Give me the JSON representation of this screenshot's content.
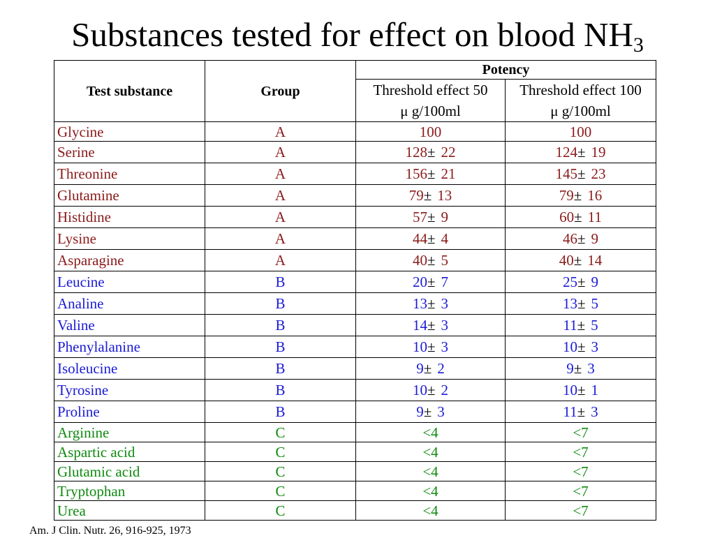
{
  "title": {
    "text": "Substances tested for effect on blood NH",
    "subscript": "3"
  },
  "table": {
    "headers": {
      "test_substance": "Test substance",
      "group": "Group",
      "potency": "Potency",
      "threshold50_line1": "Threshold effect 50",
      "threshold50_line2": "μ g/100ml",
      "threshold100_line1": "Threshold effect 100",
      "threshold100_line2": "μ g/100ml"
    },
    "rows": [
      {
        "name": "Glycine",
        "group": "A",
        "t50": "100",
        "t50_sd": "",
        "t100": "100",
        "t100_sd": ""
      },
      {
        "name": "Serine",
        "group": "A",
        "t50": "128",
        "t50_sd": "22",
        "t100": "124",
        "t100_sd": "19"
      },
      {
        "name": "Threonine",
        "group": "A",
        "t50": "156",
        "t50_sd": "21",
        "t100": "145",
        "t100_sd": "23"
      },
      {
        "name": "Glutamine",
        "group": "A",
        "t50": "79",
        "t50_sd": "13",
        "t100": "79",
        "t100_sd": "16"
      },
      {
        "name": "Histidine",
        "group": "A",
        "t50": "57",
        "t50_sd": "9",
        "t100": "60",
        "t100_sd": "11"
      },
      {
        "name": "Lysine",
        "group": "A",
        "t50": "44",
        "t50_sd": "4",
        "t100": "46",
        "t100_sd": "9"
      },
      {
        "name": "Asparagine",
        "group": "A",
        "t50": "40",
        "t50_sd": "5",
        "t100": "40",
        "t100_sd": "14"
      },
      {
        "name": "Leucine",
        "group": "B",
        "t50": "20",
        "t50_sd": "7",
        "t100": "25",
        "t100_sd": "9"
      },
      {
        "name": "Analine",
        "group": "B",
        "t50": "13",
        "t50_sd": "3",
        "t100": "13",
        "t100_sd": "5"
      },
      {
        "name": "Valine",
        "group": "B",
        "t50": "14",
        "t50_sd": "3",
        "t100": "11",
        "t100_sd": "5"
      },
      {
        "name": "Phenylalanine",
        "group": "B",
        "t50": "10",
        "t50_sd": "3",
        "t100": "10",
        "t100_sd": "3"
      },
      {
        "name": "Isoleucine",
        "group": "B",
        "t50": "9",
        "t50_sd": "2",
        "t100": "9",
        "t100_sd": "3"
      },
      {
        "name": "Tyrosine",
        "group": "B",
        "t50": "10",
        "t50_sd": "2",
        "t100": "10",
        "t100_sd": "1"
      },
      {
        "name": "Proline",
        "group": "B",
        "t50": "9",
        "t50_sd": "3",
        "t100": "11",
        "t100_sd": "3"
      },
      {
        "name": "Arginine",
        "group": "C",
        "t50": "<4",
        "t50_sd": "",
        "t100": "<7",
        "t100_sd": ""
      },
      {
        "name": "Aspartic acid",
        "group": "C",
        "t50": "<4",
        "t50_sd": "",
        "t100": "<7",
        "t100_sd": ""
      },
      {
        "name": "Glutamic acid",
        "group": "C",
        "t50": "<4",
        "t50_sd": "",
        "t100": "<7",
        "t100_sd": ""
      },
      {
        "name": "Tryptophan",
        "group": "C",
        "t50": "<4",
        "t50_sd": "",
        "t100": "<7",
        "t100_sd": ""
      },
      {
        "name": "Urea",
        "group": "C",
        "t50": "<4",
        "t50_sd": "",
        "t100": "<7",
        "t100_sd": ""
      }
    ]
  },
  "citation": "Am. J Clin. Nutr. 26, 916-925, 1973",
  "colors": {
    "group_A": "#8b1a1a",
    "group_B": "#1a1ad6",
    "group_C": "#108a10"
  }
}
